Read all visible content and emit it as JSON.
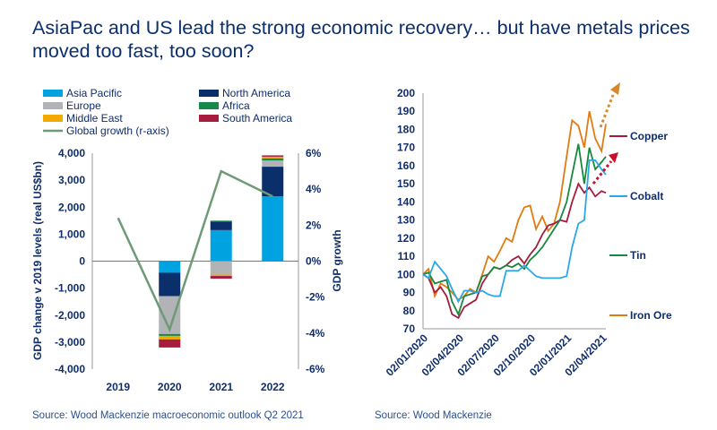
{
  "title": "AsiaPac and US lead the strong economic recovery… but have metals prices moved too fast, too soon?",
  "chart_data": [
    {
      "type": "bar",
      "stacked": true,
      "categories": [
        "2019",
        "2020",
        "2021",
        "2022"
      ],
      "ylabel": "GDP change v 2019 levels (real US$bn)",
      "ylim": [
        -4000,
        4000
      ],
      "yticks": [
        "4,000",
        "3,000",
        "2,000",
        "1,000",
        "0",
        "-1,000",
        "-2,000",
        "-3,000",
        "-4,000"
      ],
      "y2label": "GDP growth",
      "y2lim": [
        -6,
        6
      ],
      "y2ticks": [
        "6%",
        "4%",
        "2%",
        "0%",
        "-2%",
        "-4%",
        "-6%"
      ],
      "legend_position": "top",
      "series": [
        {
          "name": "Asia Pacific",
          "color": "#00a3e0",
          "values": [
            0,
            -430,
            1150,
            2400
          ]
        },
        {
          "name": "North America",
          "color": "#0b2f6b",
          "values": [
            0,
            -870,
            320,
            1100
          ]
        },
        {
          "name": "Europe",
          "color": "#b1b3b6",
          "values": [
            0,
            -1400,
            -500,
            230
          ]
        },
        {
          "name": "Africa",
          "color": "#14894a",
          "values": [
            0,
            -70,
            30,
            80
          ]
        },
        {
          "name": "Middle East",
          "color": "#f2a900",
          "values": [
            0,
            -130,
            -50,
            60
          ]
        },
        {
          "name": "South America",
          "color": "#a51c3c",
          "values": [
            0,
            -300,
            -100,
            50
          ]
        }
      ],
      "line_series": {
        "name": "Global growth (r-axis)",
        "color": "#6e9a78",
        "values": [
          2.4,
          -3.8,
          5.0,
          3.6
        ]
      },
      "source": "Source: Wood Mackenzie macroeconomic outlook Q2 2021"
    },
    {
      "type": "line",
      "ylim": [
        70,
        200
      ],
      "yticks": [
        "200",
        "190",
        "180",
        "170",
        "160",
        "150",
        "140",
        "130",
        "120",
        "110",
        "100",
        "90",
        "80",
        "70"
      ],
      "xticks": [
        "02/01/2020",
        "02/04/2020",
        "02/07/2020",
        "02/10/2020",
        "02/01/2021",
        "02/04/2021"
      ],
      "x": [
        "2020-01-02",
        "2020-01-16",
        "2020-02-01",
        "2020-02-16",
        "2020-03-02",
        "2020-03-16",
        "2020-04-01",
        "2020-04-16",
        "2020-05-01",
        "2020-05-16",
        "2020-06-01",
        "2020-06-16",
        "2020-07-01",
        "2020-07-16",
        "2020-08-01",
        "2020-08-16",
        "2020-09-01",
        "2020-09-16",
        "2020-10-01",
        "2020-10-16",
        "2020-11-01",
        "2020-11-16",
        "2020-12-01",
        "2020-12-16",
        "2021-01-02",
        "2021-01-16",
        "2021-02-01",
        "2021-02-16",
        "2021-03-01",
        "2021-03-16",
        "2021-04-01",
        "2021-04-12"
      ],
      "series": [
        {
          "name": "Iron Ore",
          "color": "#e07b10",
          "values": [
            100,
            103,
            88,
            95,
            93,
            90,
            86,
            88,
            92,
            90,
            100,
            110,
            107,
            113,
            120,
            118,
            130,
            137,
            138,
            125,
            132,
            124,
            128,
            140,
            165,
            185,
            182,
            170,
            190,
            175,
            168,
            183
          ]
        },
        {
          "name": "Copper",
          "color": "#a51c3c",
          "values": [
            100,
            98,
            90,
            93,
            88,
            78,
            76,
            82,
            84,
            86,
            95,
            100,
            104,
            103,
            105,
            108,
            110,
            106,
            111,
            115,
            122,
            127,
            128,
            130,
            129,
            140,
            150,
            145,
            148,
            143,
            146,
            145
          ]
        },
        {
          "name": "Tin",
          "color": "#17893f",
          "values": [
            100,
            101,
            95,
            96,
            97,
            85,
            78,
            88,
            89,
            90,
            99,
            100,
            104,
            103,
            105,
            104,
            106,
            103,
            108,
            111,
            115,
            120,
            125,
            130,
            140,
            155,
            172,
            150,
            170,
            158,
            162,
            165
          ]
        },
        {
          "name": "Cobalt",
          "color": "#2aa8e6",
          "values": [
            100,
            98,
            107,
            103,
            99,
            92,
            85,
            91,
            91,
            90,
            91,
            89,
            88,
            88,
            102,
            102,
            102,
            105,
            102,
            99,
            98,
            98,
            98,
            98,
            99,
            115,
            128,
            130,
            163,
            163,
            158,
            155
          ]
        }
      ],
      "legend_position": "right",
      "source": "Source: Wood Mackenzie"
    }
  ]
}
